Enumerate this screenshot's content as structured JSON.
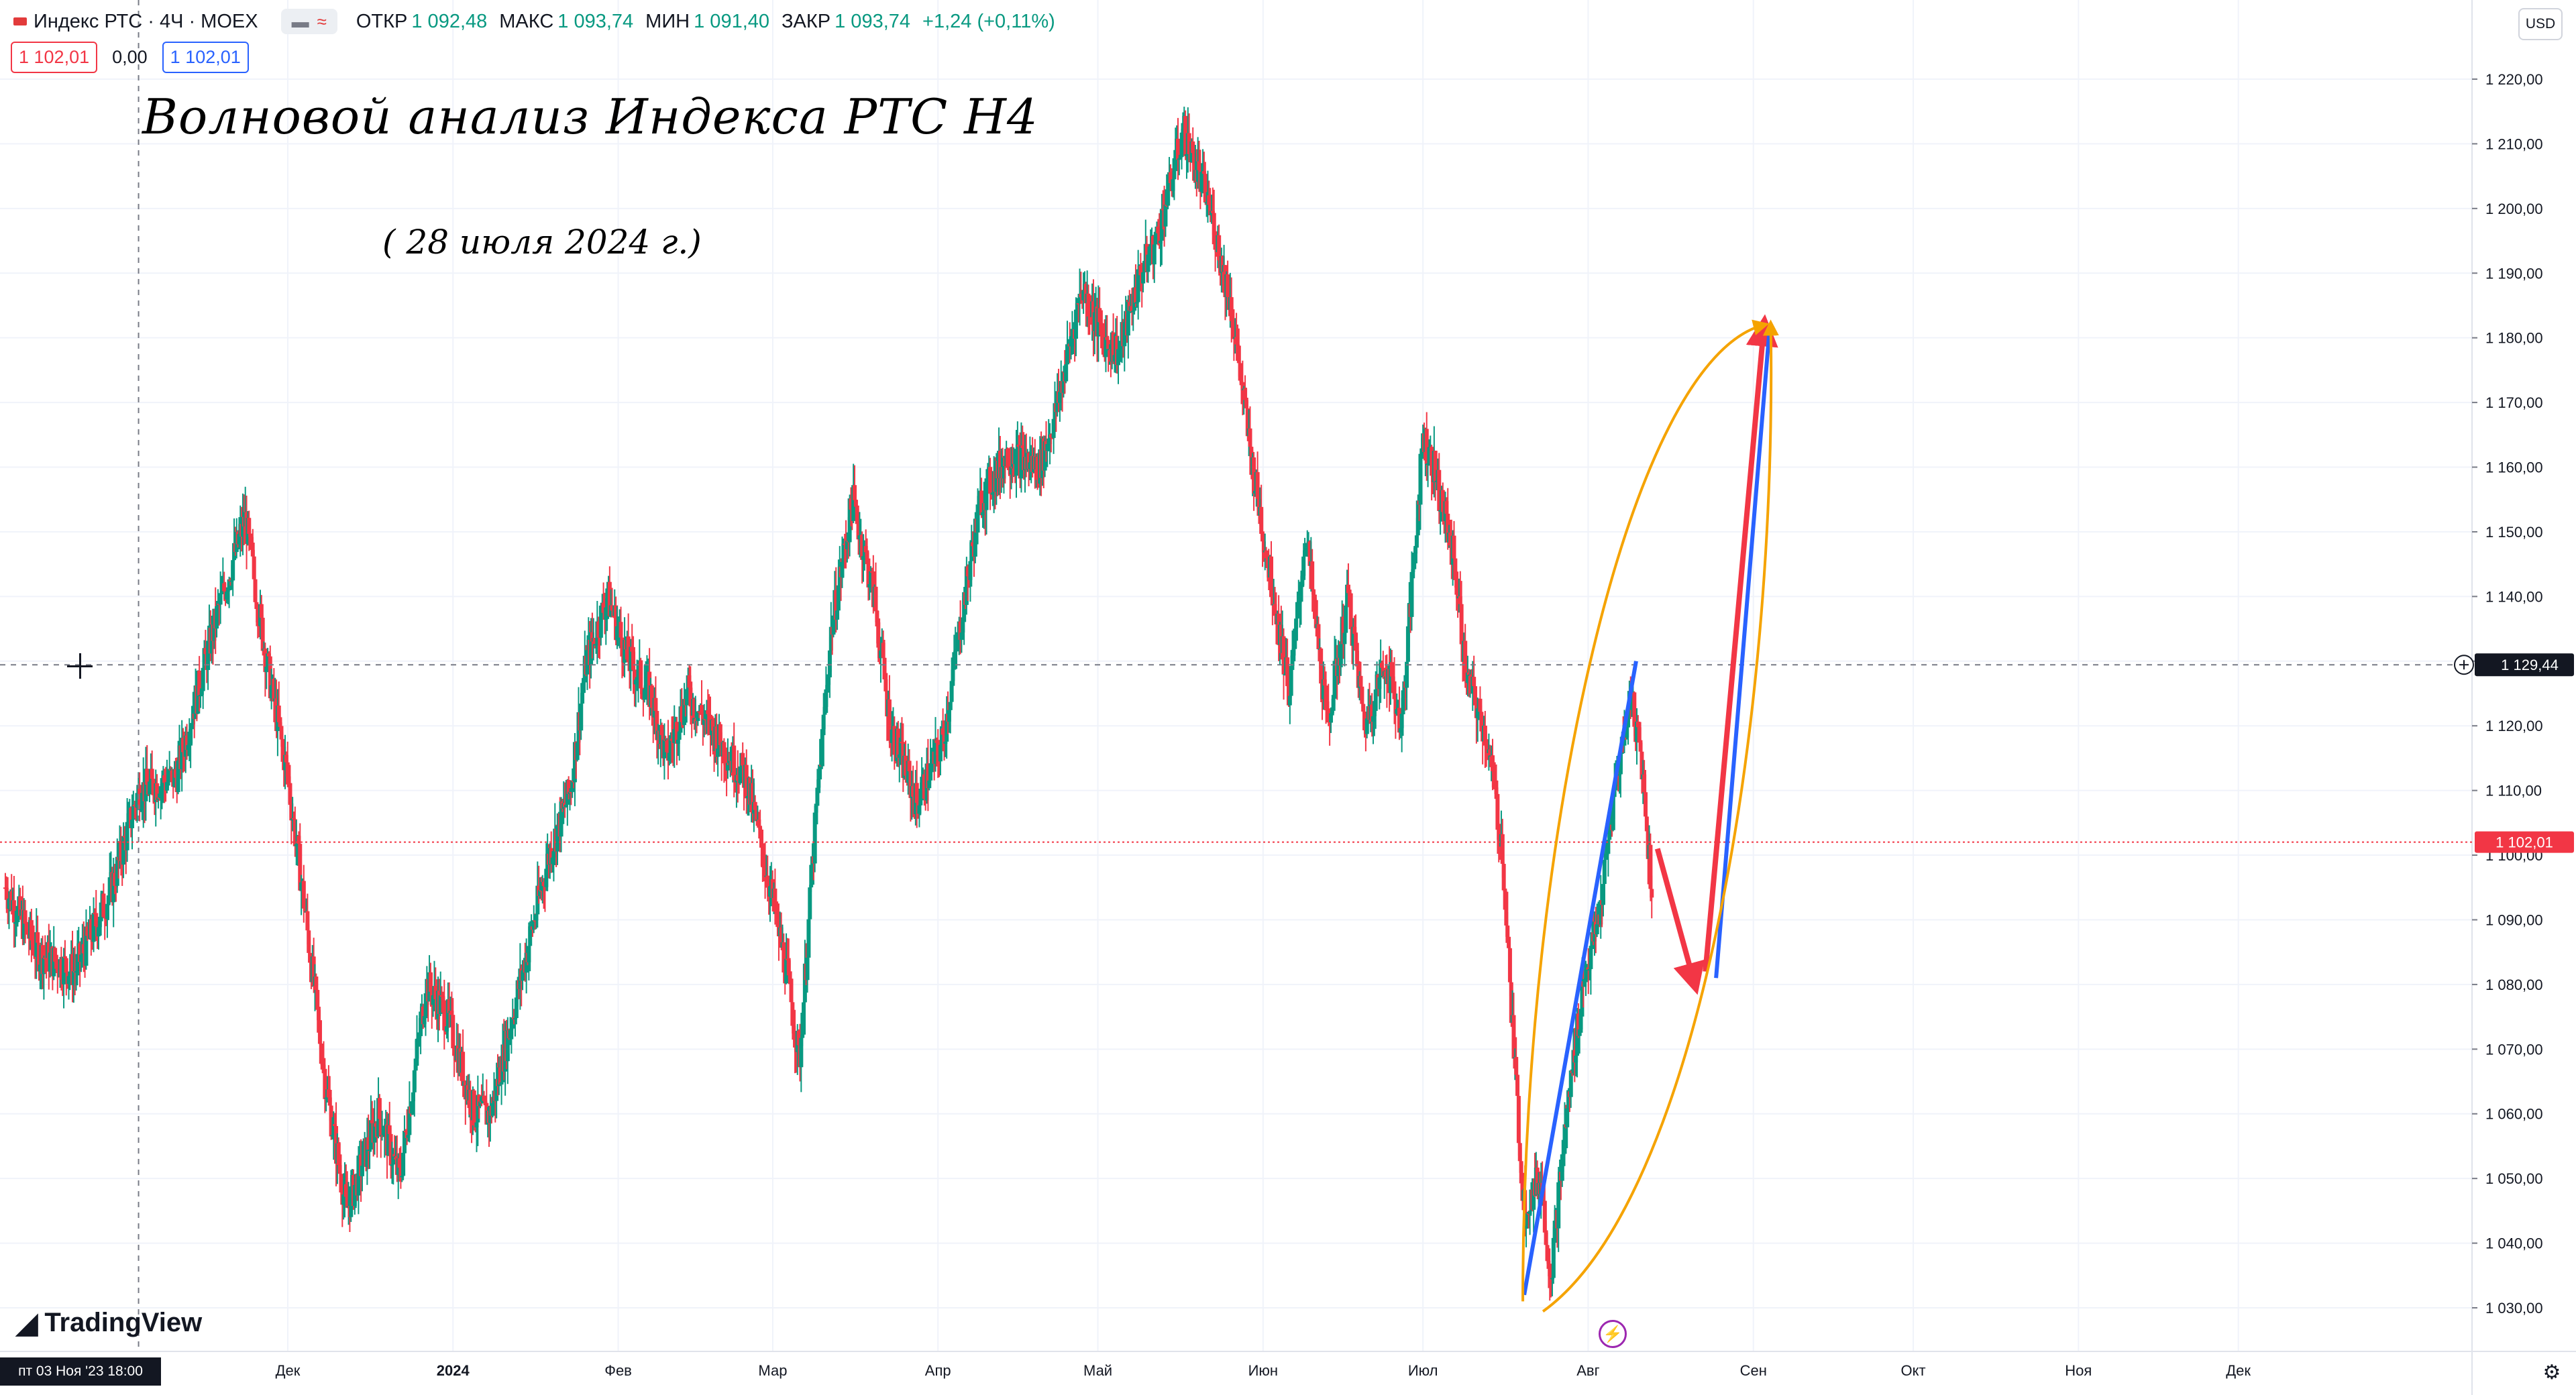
{
  "header": {
    "symbol": "Индекс РТС · 4Ч · MOEX",
    "open_label": "ОТКР",
    "open": "1 092,48",
    "high_label": "МАКС",
    "high": "1 093,74",
    "low_label": "МИН",
    "low": "1 091,40",
    "close_label": "ЗАКР",
    "close": "1 093,74",
    "change": "+1,24 (+0,11%)"
  },
  "badges": {
    "sell": "1 102,01",
    "spread": "0,00",
    "buy": "1 102,01"
  },
  "currency": "USD",
  "annotation": {
    "title": "Волновой анализ Индекса РТС Н4",
    "date": "( 28 июля 2024 г.)"
  },
  "logo": "TradingView",
  "cursor_time": "пт 03 Ноя '23   18:00",
  "colors": {
    "up": "#089981",
    "down": "#f23645",
    "wave_red": "#f23645",
    "wave_blue": "#2962ff",
    "arc": "#f5a300",
    "grid": "#f0f3fa"
  },
  "chart_data": {
    "type": "candlestick",
    "title": "Индекс РТС · 4Ч · MOEX",
    "y_range": [
      1025,
      1225
    ],
    "y_ticks": [
      "1 030,00",
      "1 040,00",
      "1 050,00",
      "1 060,00",
      "1 070,00",
      "1 080,00",
      "1 090,00",
      "1 100,00",
      "1 110,00",
      "1 120,00",
      "1 130,00",
      "1 140,00",
      "1 150,00",
      "1 160,00",
      "1 170,00",
      "1 180,00",
      "1 190,00",
      "1 200,00",
      "1 210,00",
      "1 220,00"
    ],
    "y_tick_values": [
      1030,
      1040,
      1050,
      1060,
      1070,
      1080,
      1090,
      1100,
      1110,
      1120,
      1130,
      1140,
      1150,
      1160,
      1170,
      1180,
      1190,
      1200,
      1210,
      1220
    ],
    "x_range": [
      "2023-10-08",
      "2024-12-31"
    ],
    "month_labels": [
      {
        "label": "Дек",
        "date": "2023-12-01"
      },
      {
        "label": "2024",
        "date": "2024-01-01"
      },
      {
        "label": "Фев",
        "date": "2024-02-01"
      },
      {
        "label": "Мар",
        "date": "2024-03-01"
      },
      {
        "label": "Апр",
        "date": "2024-04-01"
      },
      {
        "label": "Май",
        "date": "2024-05-01"
      },
      {
        "label": "Июн",
        "date": "2024-06-01"
      },
      {
        "label": "Июл",
        "date": "2024-07-01"
      },
      {
        "label": "Авг",
        "date": "2024-08-01"
      },
      {
        "label": "Сен",
        "date": "2024-09-01"
      },
      {
        "label": "Окт",
        "date": "2024-10-01"
      },
      {
        "label": "Ноя",
        "date": "2024-11-01"
      },
      {
        "label": "Дек",
        "date": "2024-12-01"
      }
    ],
    "price_path": [
      [
        "2023-10-09",
        1095
      ],
      [
        "2023-10-15",
        1085
      ],
      [
        "2023-10-22",
        1082
      ],
      [
        "2023-10-29",
        1095
      ],
      [
        "2023-11-03",
        1110
      ],
      [
        "2023-11-10",
        1112
      ],
      [
        "2023-11-18",
        1138
      ],
      [
        "2023-11-23",
        1152
      ],
      [
        "2023-11-27",
        1130
      ],
      [
        "2023-12-01",
        1112
      ],
      [
        "2023-12-04",
        1093
      ],
      [
        "2023-12-08",
        1065
      ],
      [
        "2023-12-12",
        1045
      ],
      [
        "2023-12-18",
        1060
      ],
      [
        "2023-12-22",
        1050
      ],
      [
        "2023-12-27",
        1080
      ],
      [
        "2023-12-31",
        1075
      ],
      [
        "2024-01-05",
        1060
      ],
      [
        "2024-01-08",
        1060
      ],
      [
        "2024-01-14",
        1082
      ],
      [
        "2024-01-19",
        1100
      ],
      [
        "2024-01-23",
        1110
      ],
      [
        "2024-01-26",
        1130
      ],
      [
        "2024-01-30",
        1140
      ],
      [
        "2024-02-03",
        1130
      ],
      [
        "2024-02-07",
        1125
      ],
      [
        "2024-02-10",
        1115
      ],
      [
        "2024-02-14",
        1125
      ],
      [
        "2024-02-18",
        1120
      ],
      [
        "2024-02-22",
        1115
      ],
      [
        "2024-02-25",
        1112
      ],
      [
        "2024-03-01",
        1093
      ],
      [
        "2024-03-04",
        1080
      ],
      [
        "2024-03-06",
        1068
      ],
      [
        "2024-03-09",
        1105
      ],
      [
        "2024-03-12",
        1135
      ],
      [
        "2024-03-16",
        1155
      ],
      [
        "2024-03-20",
        1140
      ],
      [
        "2024-03-23",
        1120
      ],
      [
        "2024-03-28",
        1108
      ],
      [
        "2024-04-02",
        1118
      ],
      [
        "2024-04-06",
        1140
      ],
      [
        "2024-04-09",
        1155
      ],
      [
        "2024-04-14",
        1162
      ],
      [
        "2024-04-20",
        1160
      ],
      [
        "2024-04-23",
        1168
      ],
      [
        "2024-04-28",
        1188
      ],
      [
        "2024-05-02",
        1180
      ],
      [
        "2024-05-05",
        1178
      ],
      [
        "2024-05-09",
        1190
      ],
      [
        "2024-05-12",
        1195
      ],
      [
        "2024-05-17",
        1212
      ],
      [
        "2024-05-22",
        1200
      ],
      [
        "2024-05-26",
        1185
      ],
      [
        "2024-05-30",
        1160
      ],
      [
        "2024-06-03",
        1140
      ],
      [
        "2024-06-06",
        1125
      ],
      [
        "2024-06-09",
        1150
      ],
      [
        "2024-06-13",
        1120
      ],
      [
        "2024-06-17",
        1140
      ],
      [
        "2024-06-20",
        1120
      ],
      [
        "2024-06-24",
        1130
      ],
      [
        "2024-06-27",
        1120
      ],
      [
        "2024-07-01",
        1165
      ],
      [
        "2024-07-03",
        1160
      ],
      [
        "2024-07-07",
        1145
      ],
      [
        "2024-07-09",
        1128
      ],
      [
        "2024-07-13",
        1118
      ],
      [
        "2024-07-16",
        1100
      ],
      [
        "2024-07-18",
        1070
      ],
      [
        "2024-07-20",
        1045
      ],
      [
        "2024-07-23",
        1050
      ],
      [
        "2024-07-25",
        1035
      ],
      [
        "2024-07-28",
        1060
      ],
      [
        "2024-07-31",
        1080
      ],
      [
        "2024-08-03",
        1090
      ],
      [
        "2024-08-06",
        1110
      ],
      [
        "2024-08-09",
        1125
      ],
      [
        "2024-08-11",
        1115
      ],
      [
        "2024-08-13",
        1093.74
      ]
    ],
    "last_price": "1 102,01",
    "last_price_value": 1102.01,
    "crosshair_price": "1 129,44",
    "crosshair_value": 1129.44,
    "crosshair_date": "2023-11-03",
    "forecast": [
      {
        "type": "arrow",
        "color": "red",
        "from": [
          "2024-08-14",
          1101
        ],
        "to": [
          "2024-08-21",
          1080
        ]
      },
      {
        "type": "arrow",
        "color": "red",
        "from": [
          "2024-08-23",
          1082
        ],
        "to": [
          "2024-09-03",
          1182
        ]
      },
      {
        "type": "line",
        "color": "blue",
        "from": [
          "2024-07-20",
          1032
        ],
        "to": [
          "2024-08-10",
          1130
        ]
      },
      {
        "type": "line",
        "color": "blue",
        "from": [
          "2024-08-25",
          1081
        ],
        "to": [
          "2024-09-04",
          1181
        ]
      },
      {
        "type": "arc",
        "color": "orange",
        "from": [
          "2024-07-21",
          1031
        ],
        "to": [
          "2024-09-03",
          1182
        ]
      }
    ]
  }
}
